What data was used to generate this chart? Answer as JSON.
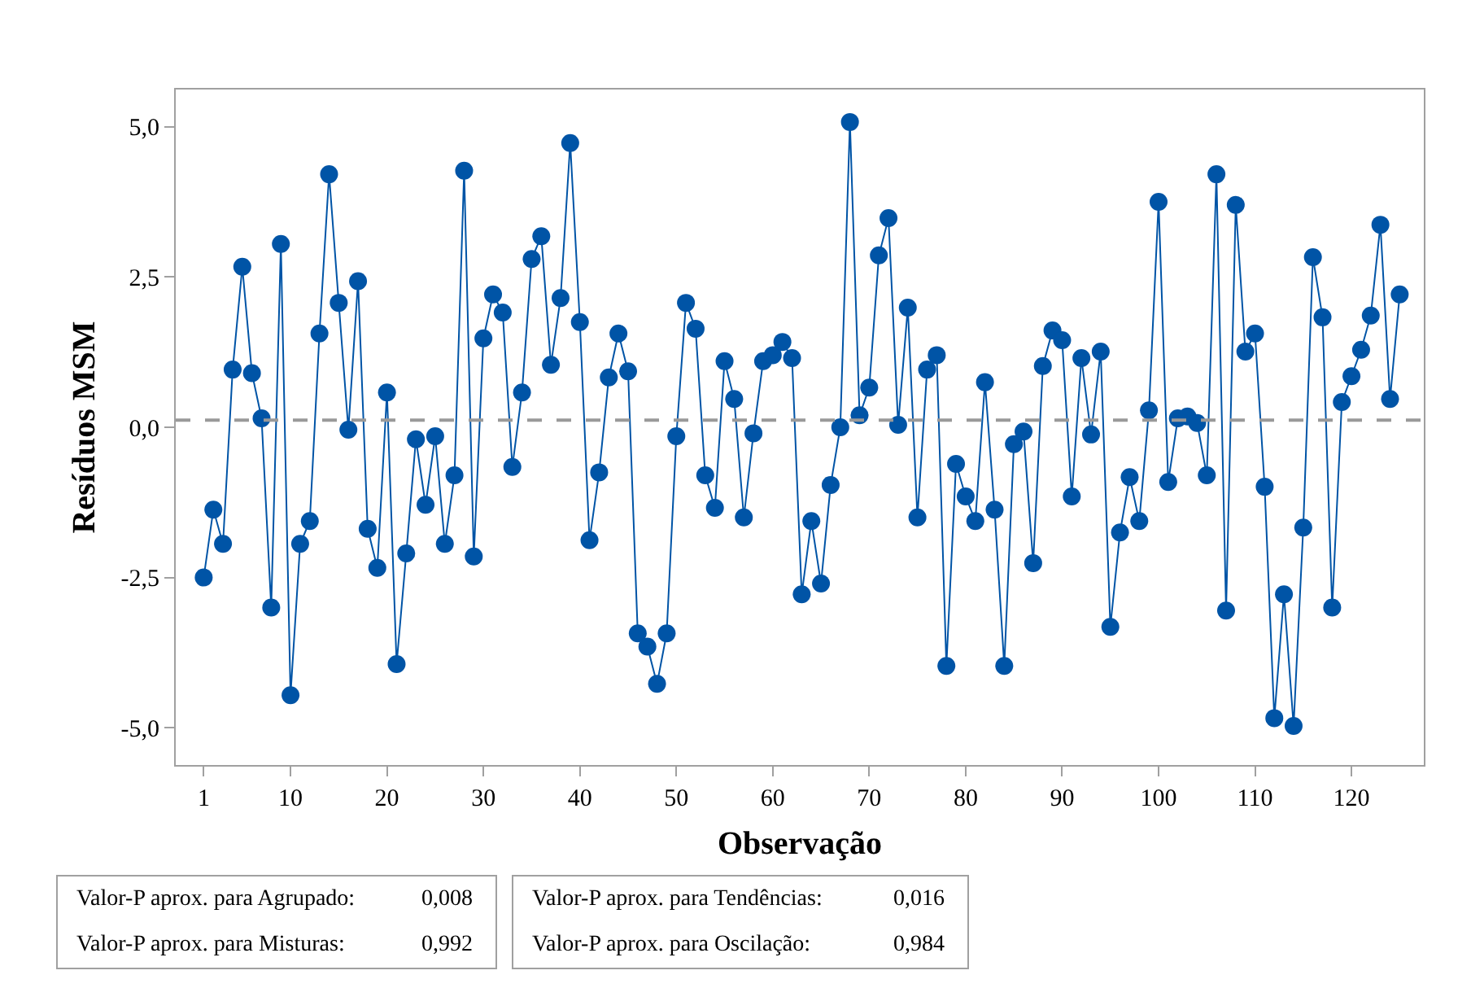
{
  "chart_data": {
    "type": "line",
    "xlabel": "Observação",
    "ylabel": "Resíduos MSM",
    "x": [
      1,
      2,
      3,
      4,
      5,
      6,
      7,
      8,
      9,
      10,
      11,
      12,
      13,
      14,
      15,
      16,
      17,
      18,
      19,
      20,
      21,
      22,
      23,
      24,
      25,
      26,
      27,
      28,
      29,
      30,
      31,
      32,
      33,
      34,
      35,
      36,
      37,
      38,
      39,
      40,
      41,
      42,
      43,
      44,
      45,
      46,
      47,
      48,
      49,
      50,
      51,
      52,
      53,
      54,
      55,
      56,
      57,
      58,
      59,
      60,
      61,
      62,
      63,
      64,
      65,
      66,
      67,
      68,
      69,
      70,
      71,
      72,
      73,
      74,
      75,
      76,
      77,
      78,
      79,
      80,
      81,
      82,
      83,
      84,
      85,
      86,
      87,
      88,
      89,
      90,
      91,
      92,
      93,
      94,
      95,
      96,
      97,
      98,
      99,
      100,
      101,
      102,
      103,
      104,
      105,
      106,
      107,
      108,
      109,
      110,
      111,
      112,
      113,
      114,
      115,
      116,
      117,
      118,
      119,
      120,
      121,
      122,
      123,
      124,
      125
    ],
    "series": [
      {
        "color": "#0054a6",
        "values": [
          -2.5,
          -1.37,
          -1.94,
          0.96,
          2.67,
          0.9,
          0.15,
          -3.0,
          3.05,
          -4.46,
          -1.94,
          -1.56,
          1.56,
          4.21,
          2.07,
          -0.04,
          2.43,
          -1.69,
          -2.34,
          0.58,
          -3.94,
          -2.1,
          -0.2,
          -1.29,
          -0.15,
          -1.94,
          -0.8,
          4.27,
          -2.15,
          1.48,
          2.21,
          1.91,
          -0.66,
          0.58,
          2.8,
          3.18,
          1.04,
          2.15,
          4.73,
          1.75,
          -1.88,
          -0.75,
          0.83,
          1.56,
          0.93,
          -3.43,
          -3.65,
          -4.27,
          -3.43,
          -0.15,
          2.07,
          1.64,
          -0.8,
          -1.34,
          1.1,
          0.47,
          -1.5,
          -0.1,
          1.1,
          1.2,
          1.42,
          1.15,
          -2.78,
          -1.56,
          -2.6,
          -0.96,
          0.0,
          5.08,
          0.2,
          0.66,
          2.86,
          3.48,
          0.04,
          1.99,
          -1.5,
          0.96,
          1.2,
          -3.97,
          -0.61,
          -1.15,
          -1.56,
          0.75,
          -1.37,
          -3.97,
          -0.28,
          -0.07,
          -2.26,
          1.02,
          1.61,
          1.45,
          -1.15,
          1.15,
          -0.12,
          1.26,
          -3.32,
          -1.75,
          -0.83,
          -1.56,
          0.28,
          3.75,
          -0.91,
          0.15,
          0.18,
          0.07,
          -0.8,
          4.21,
          -3.05,
          3.7,
          1.26,
          1.56,
          -0.99,
          -4.84,
          -2.78,
          -4.97,
          -1.67,
          2.83,
          1.83,
          -3.0,
          0.42,
          0.85,
          1.29,
          1.86,
          3.37,
          0.47,
          2.21
        ]
      }
    ],
    "marker": "circle",
    "line_style": "solid",
    "legend": false,
    "xlim": [
      -1.9,
      127.5
    ],
    "xticks": [
      1,
      10,
      20,
      30,
      40,
      50,
      60,
      70,
      80,
      90,
      100,
      110,
      120
    ],
    "ylim": [
      -5.62,
      5.62
    ],
    "yticks": [
      {
        "value": -5,
        "label": "-5,0"
      },
      {
        "value": -2.5,
        "label": "-2,5"
      },
      {
        "value": 0,
        "label": "0,0"
      },
      {
        "value": 2.5,
        "label": "2,5"
      },
      {
        "value": 5,
        "label": "5,0"
      }
    ],
    "ref_lines": [
      {
        "axis": "y",
        "value": 0.12,
        "color": "#999999",
        "line_style": "dashed"
      }
    ],
    "annotations": [
      "Valor-P aprox. para Agrupado:",
      "0,008",
      "Valor-P aprox. para Misturas:",
      "0,992",
      "Valor-P aprox. para Tendências:",
      "0,016",
      "Valor-P aprox. para Oscilação:",
      "0,984"
    ]
  }
}
